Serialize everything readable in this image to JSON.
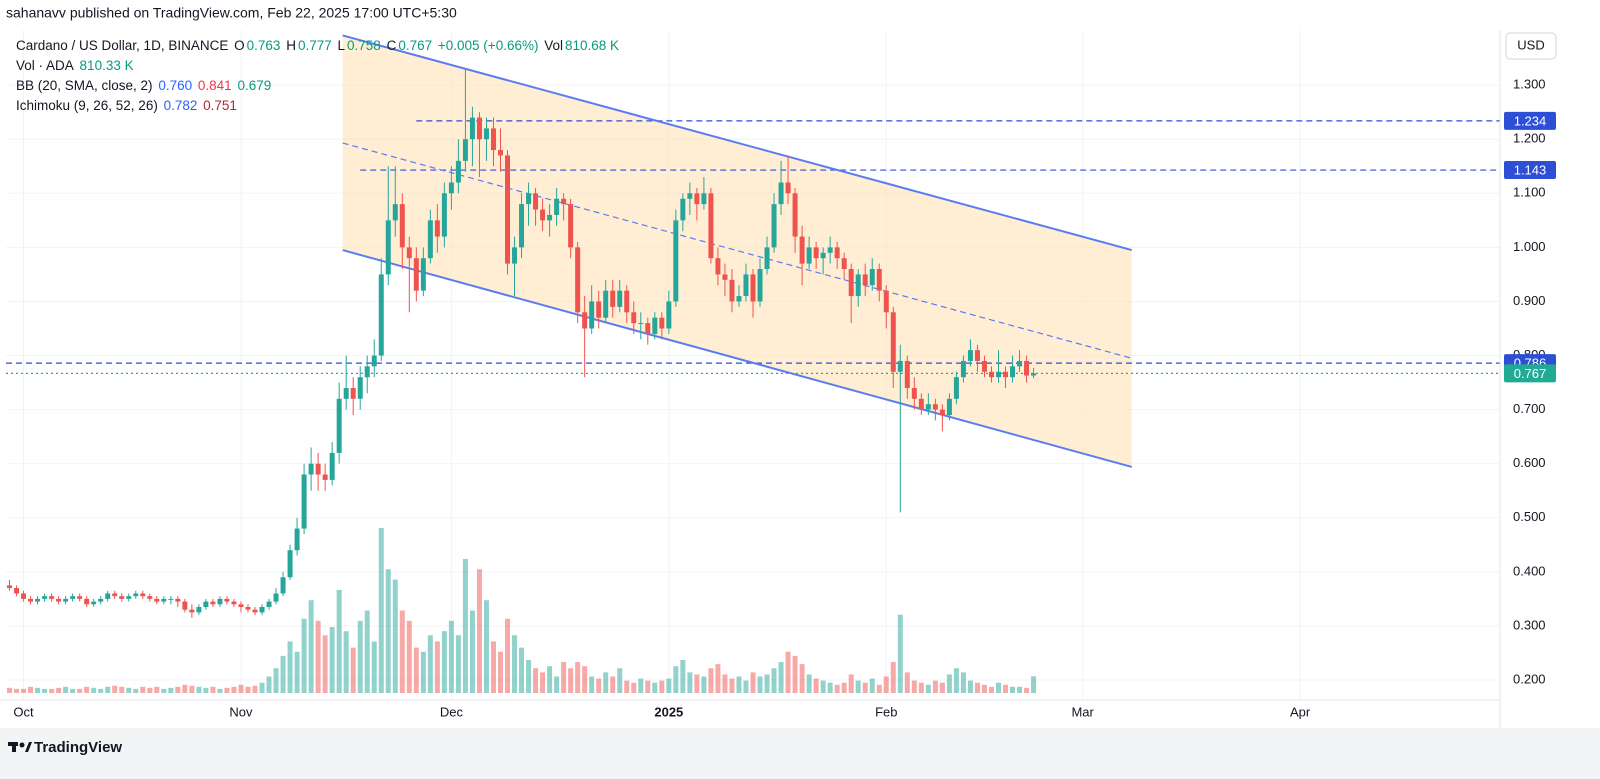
{
  "header": {
    "byline": "sahanavv published on TradingView.com, Feb 22, 2025 17:00 UTC+5:30",
    "footer": "TradingView",
    "currency": "USD"
  },
  "legend": {
    "symbol": "Cardano / US Dollar, 1D, BINANCE",
    "o_label": "O",
    "o": "0.763",
    "h_label": "H",
    "h": "0.777",
    "l_label": "L",
    "l": "0.758",
    "c_label": "C",
    "c": "0.767",
    "change": "+0.005 (+0.66%)",
    "vol_label": "Vol",
    "vol": "810.68 K",
    "vol_name": "Vol · ADA",
    "vol_value": "810.33 K",
    "bb_name": "BB (20, SMA, close, 2)",
    "bb_basis": "0.760",
    "bb_upper": "0.841",
    "bb_lower": "0.679",
    "ichi_name": "Ichimoku (9, 26, 52, 26)",
    "ichi_conv": "0.782",
    "ichi_base": "0.751"
  },
  "chart_data": {
    "type": "candlestick",
    "up_color": "#26a69a",
    "down_color": "#ef5350",
    "xlim": [
      -0.5,
      212.5
    ],
    "ylim": [
      0.163,
      1.402
    ],
    "xticks": [
      {
        "value": 2,
        "label": "Oct"
      },
      {
        "value": 33,
        "label": "Nov"
      },
      {
        "value": 63,
        "label": "Dec"
      },
      {
        "value": 94,
        "label": "2025"
      },
      {
        "value": 125,
        "label": "Feb"
      },
      {
        "value": 153,
        "label": "Mar"
      },
      {
        "value": 184,
        "label": "Apr"
      }
    ],
    "yticks": [
      {
        "value": 0.2,
        "label": "0.200"
      },
      {
        "value": 0.3,
        "label": "0.300"
      },
      {
        "value": 0.4,
        "label": "0.400"
      },
      {
        "value": 0.5,
        "label": "0.500"
      },
      {
        "value": 0.6,
        "label": "0.600"
      },
      {
        "value": 0.7,
        "label": "0.700"
      },
      {
        "value": 0.8,
        "label": "0.800"
      },
      {
        "value": 0.9,
        "label": "0.900"
      },
      {
        "value": 1.0,
        "label": "1.000"
      },
      {
        "value": 1.1,
        "label": "1.100"
      },
      {
        "value": 1.2,
        "label": "1.200"
      },
      {
        "value": 1.3,
        "label": "1.300"
      }
    ],
    "grid": true,
    "candles": [
      [
        0.375,
        0.385,
        0.365,
        0.37
      ],
      [
        0.37,
        0.375,
        0.355,
        0.36
      ],
      [
        0.36,
        0.365,
        0.345,
        0.35
      ],
      [
        0.35,
        0.355,
        0.34,
        0.345
      ],
      [
        0.345,
        0.355,
        0.34,
        0.35
      ],
      [
        0.35,
        0.36,
        0.345,
        0.355
      ],
      [
        0.355,
        0.36,
        0.345,
        0.35
      ],
      [
        0.35,
        0.355,
        0.34,
        0.345
      ],
      [
        0.345,
        0.355,
        0.34,
        0.35
      ],
      [
        0.35,
        0.36,
        0.345,
        0.355
      ],
      [
        0.355,
        0.36,
        0.345,
        0.35
      ],
      [
        0.35,
        0.355,
        0.335,
        0.34
      ],
      [
        0.34,
        0.35,
        0.335,
        0.345
      ],
      [
        0.345,
        0.355,
        0.34,
        0.35
      ],
      [
        0.35,
        0.365,
        0.345,
        0.36
      ],
      [
        0.36,
        0.365,
        0.35,
        0.355
      ],
      [
        0.355,
        0.36,
        0.345,
        0.35
      ],
      [
        0.35,
        0.36,
        0.345,
        0.355
      ],
      [
        0.355,
        0.365,
        0.35,
        0.36
      ],
      [
        0.36,
        0.365,
        0.35,
        0.355
      ],
      [
        0.355,
        0.36,
        0.345,
        0.35
      ],
      [
        0.35,
        0.355,
        0.34,
        0.345
      ],
      [
        0.345,
        0.355,
        0.34,
        0.35
      ],
      [
        0.35,
        0.355,
        0.34,
        0.35
      ],
      [
        0.35,
        0.355,
        0.335,
        0.345
      ],
      [
        0.345,
        0.35,
        0.325,
        0.33
      ],
      [
        0.33,
        0.34,
        0.315,
        0.325
      ],
      [
        0.325,
        0.34,
        0.32,
        0.335
      ],
      [
        0.335,
        0.35,
        0.33,
        0.345
      ],
      [
        0.345,
        0.35,
        0.335,
        0.34
      ],
      [
        0.34,
        0.355,
        0.335,
        0.35
      ],
      [
        0.35,
        0.355,
        0.34,
        0.345
      ],
      [
        0.345,
        0.35,
        0.335,
        0.34
      ],
      [
        0.34,
        0.345,
        0.325,
        0.335
      ],
      [
        0.335,
        0.34,
        0.325,
        0.33
      ],
      [
        0.33,
        0.335,
        0.32,
        0.325
      ],
      [
        0.325,
        0.34,
        0.32,
        0.335
      ],
      [
        0.335,
        0.35,
        0.33,
        0.345
      ],
      [
        0.345,
        0.37,
        0.34,
        0.36
      ],
      [
        0.36,
        0.4,
        0.355,
        0.39
      ],
      [
        0.39,
        0.45,
        0.385,
        0.44
      ],
      [
        0.44,
        0.5,
        0.43,
        0.48
      ],
      [
        0.48,
        0.6,
        0.47,
        0.58
      ],
      [
        0.58,
        0.63,
        0.55,
        0.6
      ],
      [
        0.6,
        0.62,
        0.55,
        0.58
      ],
      [
        0.58,
        0.6,
        0.55,
        0.57
      ],
      [
        0.57,
        0.64,
        0.56,
        0.62
      ],
      [
        0.62,
        0.75,
        0.6,
        0.72
      ],
      [
        0.72,
        0.8,
        0.7,
        0.74
      ],
      [
        0.74,
        0.76,
        0.69,
        0.72
      ],
      [
        0.72,
        0.78,
        0.7,
        0.76
      ],
      [
        0.76,
        0.8,
        0.73,
        0.78
      ],
      [
        0.78,
        0.83,
        0.76,
        0.8
      ],
      [
        0.8,
        0.98,
        0.79,
        0.95
      ],
      [
        0.95,
        1.15,
        0.93,
        1.05
      ],
      [
        1.05,
        1.15,
        1.02,
        1.08
      ],
      [
        1.08,
        1.1,
        0.96,
        1.0
      ],
      [
        1.0,
        1.02,
        0.88,
        0.98
      ],
      [
        0.98,
        1.0,
        0.9,
        0.92
      ],
      [
        0.92,
        1.0,
        0.91,
        0.98
      ],
      [
        0.98,
        1.07,
        0.97,
        1.05
      ],
      [
        1.05,
        1.08,
        0.99,
        1.02
      ],
      [
        1.02,
        1.12,
        1.0,
        1.1
      ],
      [
        1.1,
        1.15,
        1.07,
        1.12
      ],
      [
        1.12,
        1.2,
        1.1,
        1.16
      ],
      [
        1.16,
        1.33,
        1.14,
        1.2
      ],
      [
        1.2,
        1.26,
        1.15,
        1.24
      ],
      [
        1.24,
        1.25,
        1.13,
        1.2
      ],
      [
        1.2,
        1.24,
        1.16,
        1.22
      ],
      [
        1.22,
        1.24,
        1.15,
        1.18
      ],
      [
        1.18,
        1.22,
        1.14,
        1.17
      ],
      [
        1.17,
        1.18,
        0.95,
        0.97
      ],
      [
        0.97,
        1.02,
        0.91,
        1.0
      ],
      [
        1.0,
        1.1,
        0.98,
        1.08
      ],
      [
        1.08,
        1.12,
        1.04,
        1.1
      ],
      [
        1.1,
        1.11,
        1.04,
        1.07
      ],
      [
        1.07,
        1.09,
        1.03,
        1.05
      ],
      [
        1.05,
        1.08,
        1.02,
        1.06
      ],
      [
        1.06,
        1.11,
        1.04,
        1.09
      ],
      [
        1.09,
        1.1,
        1.05,
        1.08
      ],
      [
        1.08,
        1.09,
        0.98,
        1.0
      ],
      [
        1.0,
        1.01,
        0.86,
        0.88
      ],
      [
        0.88,
        0.91,
        0.76,
        0.85
      ],
      [
        0.85,
        0.93,
        0.84,
        0.9
      ],
      [
        0.9,
        0.92,
        0.85,
        0.87
      ],
      [
        0.87,
        0.94,
        0.86,
        0.92
      ],
      [
        0.92,
        0.94,
        0.87,
        0.89
      ],
      [
        0.89,
        0.94,
        0.88,
        0.92
      ],
      [
        0.92,
        0.93,
        0.86,
        0.88
      ],
      [
        0.88,
        0.9,
        0.84,
        0.86
      ],
      [
        0.86,
        0.88,
        0.83,
        0.86
      ],
      [
        0.86,
        0.87,
        0.82,
        0.84
      ],
      [
        0.84,
        0.88,
        0.83,
        0.87
      ],
      [
        0.87,
        0.88,
        0.83,
        0.85
      ],
      [
        0.85,
        0.92,
        0.84,
        0.9
      ],
      [
        0.9,
        1.07,
        0.89,
        1.05
      ],
      [
        1.05,
        1.1,
        1.03,
        1.09
      ],
      [
        1.09,
        1.12,
        1.06,
        1.1
      ],
      [
        1.1,
        1.11,
        1.05,
        1.08
      ],
      [
        1.08,
        1.13,
        1.07,
        1.1
      ],
      [
        1.1,
        1.11,
        0.97,
        0.98
      ],
      [
        0.98,
        1.0,
        0.93,
        0.95
      ],
      [
        0.95,
        0.97,
        0.91,
        0.94
      ],
      [
        0.94,
        0.96,
        0.88,
        0.9
      ],
      [
        0.9,
        0.93,
        0.89,
        0.91
      ],
      [
        0.91,
        0.97,
        0.9,
        0.95
      ],
      [
        0.95,
        0.96,
        0.87,
        0.9
      ],
      [
        0.9,
        0.98,
        0.89,
        0.96
      ],
      [
        0.96,
        1.02,
        0.95,
        1.0
      ],
      [
        1.0,
        1.1,
        0.99,
        1.08
      ],
      [
        1.08,
        1.16,
        1.06,
        1.12
      ],
      [
        1.12,
        1.17,
        1.08,
        1.1
      ],
      [
        1.1,
        1.11,
        0.99,
        1.02
      ],
      [
        1.02,
        1.04,
        0.93,
        0.97
      ],
      [
        0.97,
        1.02,
        0.96,
        1.0
      ],
      [
        1.0,
        1.01,
        0.96,
        0.98
      ],
      [
        0.98,
        1.0,
        0.95,
        0.99
      ],
      [
        0.99,
        1.02,
        0.97,
        1.0
      ],
      [
        1.0,
        1.01,
        0.96,
        0.98
      ],
      [
        0.98,
        0.99,
        0.94,
        0.96
      ],
      [
        0.96,
        0.97,
        0.86,
        0.91
      ],
      [
        0.91,
        0.96,
        0.89,
        0.95
      ],
      [
        0.95,
        0.97,
        0.91,
        0.93
      ],
      [
        0.93,
        0.98,
        0.92,
        0.96
      ],
      [
        0.96,
        0.97,
        0.9,
        0.92
      ],
      [
        0.92,
        0.93,
        0.85,
        0.88
      ],
      [
        0.88,
        0.89,
        0.74,
        0.77
      ],
      [
        0.77,
        0.82,
        0.51,
        0.79
      ],
      [
        0.79,
        0.8,
        0.72,
        0.74
      ],
      [
        0.74,
        0.76,
        0.7,
        0.72
      ],
      [
        0.72,
        0.73,
        0.69,
        0.7
      ],
      [
        0.7,
        0.73,
        0.69,
        0.71
      ],
      [
        0.71,
        0.72,
        0.68,
        0.7
      ],
      [
        0.7,
        0.71,
        0.66,
        0.69
      ],
      [
        0.69,
        0.73,
        0.68,
        0.72
      ],
      [
        0.72,
        0.77,
        0.71,
        0.76
      ],
      [
        0.76,
        0.8,
        0.75,
        0.79
      ],
      [
        0.79,
        0.83,
        0.78,
        0.81
      ],
      [
        0.81,
        0.82,
        0.77,
        0.79
      ],
      [
        0.79,
        0.8,
        0.76,
        0.77
      ],
      [
        0.77,
        0.78,
        0.75,
        0.76
      ],
      [
        0.76,
        0.81,
        0.75,
        0.77
      ],
      [
        0.77,
        0.78,
        0.74,
        0.76
      ],
      [
        0.76,
        0.8,
        0.75,
        0.78
      ],
      [
        0.78,
        0.81,
        0.77,
        0.79
      ],
      [
        0.79,
        0.8,
        0.75,
        0.763
      ],
      [
        0.763,
        0.777,
        0.758,
        0.767
      ]
    ],
    "volume": [
      0.25,
      0.2,
      0.2,
      0.3,
      0.25,
      0.2,
      0.2,
      0.25,
      0.3,
      0.2,
      0.2,
      0.3,
      0.25,
      0.2,
      0.3,
      0.35,
      0.3,
      0.25,
      0.2,
      0.3,
      0.25,
      0.3,
      0.2,
      0.25,
      0.3,
      0.4,
      0.35,
      0.3,
      0.25,
      0.3,
      0.2,
      0.25,
      0.3,
      0.4,
      0.3,
      0.35,
      0.5,
      0.8,
      1.2,
      1.8,
      2.5,
      2.0,
      3.6,
      4.5,
      3.5,
      2.8,
      3.2,
      5.0,
      3.0,
      2.2,
      3.5,
      4.0,
      2.5,
      8.0,
      6.0,
      5.5,
      4.0,
      3.5,
      2.2,
      2.0,
      2.8,
      2.5,
      3.0,
      3.5,
      2.8,
      6.5,
      4.0,
      6.0,
      4.5,
      2.5,
      2.0,
      3.6,
      2.8,
      2.2,
      1.6,
      1.2,
      1.0,
      1.3,
      0.8,
      1.5,
      1.2,
      1.5,
      1.3,
      0.8,
      0.7,
      1.0,
      0.8,
      1.2,
      0.6,
      0.5,
      0.7,
      0.6,
      0.5,
      0.6,
      0.7,
      1.3,
      1.6,
      1.0,
      0.9,
      0.8,
      1.2,
      1.4,
      0.9,
      0.7,
      0.8,
      0.6,
      1.0,
      0.8,
      0.9,
      1.2,
      1.5,
      2.0,
      1.8,
      1.4,
      0.9,
      0.7,
      0.6,
      0.5,
      0.4,
      0.5,
      0.9,
      0.6,
      0.5,
      0.7,
      0.4,
      0.8,
      1.5,
      3.8,
      1.0,
      0.6,
      0.5,
      0.4,
      0.6,
      0.5,
      0.9,
      1.2,
      1.0,
      0.6,
      0.5,
      0.4,
      0.3,
      0.5,
      0.4,
      0.3,
      0.3,
      0.25,
      0.81068
    ],
    "trendlines": [
      {
        "start": [
          47.5,
          1.392
        ],
        "end": [
          160,
          0.995
        ],
        "color": "#5b7cf0",
        "style": "solid"
      },
      {
        "start": [
          47.5,
          0.995
        ],
        "end": [
          160,
          0.594
        ],
        "color": "#5b7cf0",
        "style": "solid"
      },
      {
        "start": [
          47.5,
          1.193
        ],
        "end": [
          160,
          0.795
        ],
        "color": "#5b7cf0",
        "style": "dashed"
      }
    ],
    "channel_color": "#ffe0b0",
    "levels": [
      {
        "value": 1.234,
        "start": 58,
        "color": "#2d4fd6",
        "style": "dashed"
      },
      {
        "value": 1.143,
        "start": 50,
        "color": "#2d4fd6",
        "style": "dashed"
      },
      {
        "value": 0.786,
        "start": -0.5,
        "color": "#2d4fd6",
        "style": "dashed"
      },
      {
        "value": 0.767,
        "start": -0.5,
        "color": "#22ab94",
        "style": "dotted"
      }
    ]
  }
}
